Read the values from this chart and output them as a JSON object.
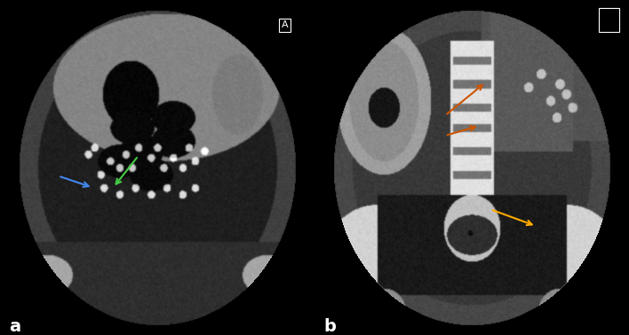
{
  "figsize": [
    7.08,
    3.78
  ],
  "dpi": 100,
  "background_color": "#000000",
  "panel_a": {
    "label": "a",
    "label_color": "#ffffff",
    "label_fontsize": 14,
    "label_fontweight": "bold",
    "box_label": "A",
    "blue_arrow": {
      "xtail": 0.185,
      "ytail": 0.475,
      "xhead": 0.295,
      "yhead": 0.44,
      "color": "#4488ee",
      "lw": 1.5
    },
    "green_arrow": {
      "xtail": 0.44,
      "ytail": 0.535,
      "xhead": 0.36,
      "yhead": 0.44,
      "color": "#44cc44",
      "lw": 1.5
    }
  },
  "panel_b": {
    "label": "b",
    "label_color": "#ffffff",
    "label_fontsize": 14,
    "label_fontweight": "bold",
    "yellow_arrow": {
      "xtail": 0.56,
      "ytail": 0.375,
      "xhead": 0.705,
      "yhead": 0.325,
      "color": "#ffaa00",
      "lw": 1.5
    },
    "orange_arrow1": {
      "xtail": 0.415,
      "ytail": 0.595,
      "xhead": 0.525,
      "yhead": 0.625,
      "color": "#cc5500",
      "lw": 1.5
    },
    "orange_arrow2": {
      "xtail": 0.415,
      "ytail": 0.655,
      "xhead": 0.545,
      "yhead": 0.755,
      "color": "#cc5500",
      "lw": 1.5
    }
  }
}
